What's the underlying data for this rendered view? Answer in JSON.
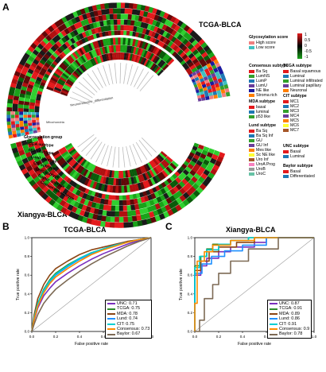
{
  "panelA": {
    "letter": "A",
    "title_tcga": "TCGA-BLCA",
    "title_xiangya": "Xiangya-BLCA",
    "pathways_upper": [
      "Neuroendocrine_differentiation",
      "Mitochondria"
    ],
    "track_labels": [
      "Glycosylation group",
      "TCGA subtype",
      "MDA subtype",
      "Lund subtype",
      "CIT subtype",
      "UNC subtype",
      "Baylor subtype",
      "Consensus subtype"
    ],
    "glyco_legend": {
      "title": "Glycosylation score",
      "items": [
        {
          "label": "High score",
          "color": "#f08080"
        },
        {
          "label": "Low score",
          "color": "#40c0c0"
        }
      ]
    },
    "colorbar": {
      "ticks": [
        "1",
        "0.5",
        "0",
        "-0.5",
        "-1"
      ],
      "colors": [
        "#e31a1c",
        "#000000",
        "#1aa31a"
      ]
    },
    "consensus": {
      "title": "Consensus subtype",
      "items": [
        {
          "label": "Ba Sq",
          "color": "#e31a1c"
        },
        {
          "label": "LumNS",
          "color": "#33a02c"
        },
        {
          "label": "LumP",
          "color": "#1f78b4"
        },
        {
          "label": "LumU",
          "color": "#6a3d9a"
        },
        {
          "label": "NE like",
          "color": "#1a1aa0"
        },
        {
          "label": "Stroma rich",
          "color": "#ff7f00"
        }
      ]
    },
    "tcga": {
      "title": "TCGA subtype",
      "items": [
        {
          "label": "Basal squamous",
          "color": "#e31a1c"
        },
        {
          "label": "Luminal",
          "color": "#1f78b4"
        },
        {
          "label": "Luminal infiltrated",
          "color": "#33a02c"
        },
        {
          "label": "Luminal papillary",
          "color": "#6a3d9a"
        },
        {
          "label": "Neuronal",
          "color": "#ff7f00"
        }
      ]
    },
    "mda": {
      "title": "MDA subtype",
      "items": [
        {
          "label": "basal",
          "color": "#e31a1c"
        },
        {
          "label": "luminal",
          "color": "#1f78b4"
        },
        {
          "label": "p53 like",
          "color": "#33a02c"
        }
      ]
    },
    "cit": {
      "title": "CIT subtype",
      "items": [
        {
          "label": "MC1",
          "color": "#e31a1c"
        },
        {
          "label": "MC2",
          "color": "#1f78b4"
        },
        {
          "label": "MC3",
          "color": "#33a02c"
        },
        {
          "label": "MC4",
          "color": "#6a3d9a"
        },
        {
          "label": "MC5",
          "color": "#ff7f00"
        },
        {
          "label": "MC6",
          "color": "#ffff33"
        },
        {
          "label": "MC7",
          "color": "#a65628"
        }
      ]
    },
    "lund": {
      "title": "Lund subtype",
      "items": [
        {
          "label": "Ba Sq",
          "color": "#e31a1c"
        },
        {
          "label": "Ba Sq Inf",
          "color": "#1f78b4"
        },
        {
          "label": "GU",
          "color": "#33a02c"
        },
        {
          "label": "GU Inf",
          "color": "#6a3d9a"
        },
        {
          "label": "Mes like",
          "color": "#ff7f00"
        },
        {
          "label": "Sc NE like",
          "color": "#ffff33"
        },
        {
          "label": "Uro Inf",
          "color": "#a65628"
        },
        {
          "label": "UroA Prog",
          "color": "#f781bf"
        },
        {
          "label": "UroB",
          "color": "#999999"
        },
        {
          "label": "UroC",
          "color": "#66c2a5"
        }
      ]
    },
    "unc": {
      "title": "UNC subtype",
      "items": [
        {
          "label": "Basal",
          "color": "#e31a1c"
        },
        {
          "label": "Luminal",
          "color": "#1f78b4"
        }
      ]
    },
    "baylor": {
      "title": "Baylor subtype",
      "items": [
        {
          "label": "Basal",
          "color": "#e31a1c"
        },
        {
          "label": "Differentiated",
          "color": "#1f78b4"
        }
      ]
    }
  },
  "panelB": {
    "letter": "B",
    "chart_data": {
      "type": "line",
      "title": "TCGA-BLCA",
      "xlabel": "False positive rate",
      "ylabel": "True positive rate",
      "xlim": [
        0,
        1
      ],
      "ylim": [
        0,
        1
      ],
      "xticks": [
        "0.0",
        "0.2",
        "0.4",
        "0.6",
        "0.8",
        "1.0"
      ],
      "yticks": [
        "0.0",
        "0.2",
        "0.4",
        "0.6",
        "0.8",
        "1.0"
      ],
      "series": [
        {
          "name": "UNC: 0.71",
          "color": "#7b2fbe",
          "x": [
            0,
            0.02,
            0.05,
            0.1,
            0.15,
            0.2,
            0.3,
            0.4,
            0.5,
            0.6,
            0.7,
            0.8,
            0.9,
            1
          ],
          "y": [
            0,
            0.12,
            0.25,
            0.38,
            0.46,
            0.53,
            0.62,
            0.7,
            0.77,
            0.83,
            0.88,
            0.93,
            0.97,
            1
          ]
        },
        {
          "name": "TCGA: 0.75",
          "color": "#2e8b2e",
          "x": [
            0,
            0.02,
            0.05,
            0.1,
            0.15,
            0.2,
            0.3,
            0.4,
            0.5,
            0.6,
            0.7,
            0.8,
            0.9,
            1
          ],
          "y": [
            0,
            0.15,
            0.3,
            0.45,
            0.55,
            0.62,
            0.71,
            0.78,
            0.84,
            0.88,
            0.92,
            0.95,
            0.98,
            1
          ]
        },
        {
          "name": "MDA: 0.78",
          "color": "#8b4513",
          "x": [
            0,
            0.02,
            0.05,
            0.1,
            0.15,
            0.2,
            0.3,
            0.4,
            0.5,
            0.6,
            0.7,
            0.8,
            0.9,
            1
          ],
          "y": [
            0,
            0.18,
            0.35,
            0.5,
            0.6,
            0.67,
            0.75,
            0.82,
            0.87,
            0.9,
            0.93,
            0.96,
            0.98,
            1
          ]
        },
        {
          "name": "Lund: 0.74",
          "color": "#1e90ff",
          "x": [
            0,
            0.02,
            0.05,
            0.1,
            0.15,
            0.2,
            0.3,
            0.4,
            0.5,
            0.6,
            0.7,
            0.8,
            0.9,
            1
          ],
          "y": [
            0,
            0.14,
            0.28,
            0.43,
            0.53,
            0.6,
            0.69,
            0.77,
            0.83,
            0.88,
            0.92,
            0.95,
            0.98,
            1
          ]
        },
        {
          "name": "CIT: 0.75",
          "color": "#00ced1",
          "x": [
            0,
            0.02,
            0.05,
            0.1,
            0.15,
            0.2,
            0.3,
            0.4,
            0.5,
            0.6,
            0.7,
            0.8,
            0.9,
            1
          ],
          "y": [
            0,
            0.15,
            0.3,
            0.44,
            0.54,
            0.61,
            0.7,
            0.78,
            0.84,
            0.88,
            0.92,
            0.95,
            0.98,
            1
          ]
        },
        {
          "name": "Consensus: 0.73",
          "color": "#ff8c00",
          "x": [
            0,
            0.02,
            0.05,
            0.1,
            0.15,
            0.2,
            0.3,
            0.4,
            0.5,
            0.6,
            0.7,
            0.8,
            0.9,
            1
          ],
          "y": [
            0,
            0.13,
            0.27,
            0.41,
            0.51,
            0.58,
            0.67,
            0.75,
            0.82,
            0.87,
            0.91,
            0.95,
            0.98,
            1
          ]
        },
        {
          "name": "Baylor: 0.67",
          "color": "#7d6a55",
          "x": [
            0,
            0.02,
            0.05,
            0.1,
            0.15,
            0.2,
            0.3,
            0.4,
            0.5,
            0.6,
            0.7,
            0.8,
            0.9,
            1
          ],
          "y": [
            0,
            0.08,
            0.18,
            0.3,
            0.38,
            0.45,
            0.55,
            0.64,
            0.72,
            0.79,
            0.85,
            0.91,
            0.96,
            1
          ]
        }
      ]
    }
  },
  "panelC": {
    "letter": "C",
    "chart_data": {
      "type": "line",
      "title": "Xiangya-BLCA",
      "xlabel": "False positive rate",
      "ylabel": "True positive rate",
      "xlim": [
        0,
        1
      ],
      "ylim": [
        0,
        1
      ],
      "xticks": [
        "0.0",
        "0.2",
        "0.4",
        "0.6",
        "0.8",
        "1.0"
      ],
      "yticks": [
        "0.0",
        "0.2",
        "0.4",
        "0.6",
        "0.8",
        "1.0"
      ],
      "series": [
        {
          "name": "UNC: 0.87",
          "color": "#7b2fbe",
          "x": [
            0,
            0,
            0.05,
            0.05,
            0.1,
            0.1,
            0.2,
            0.2,
            0.3,
            0.3,
            0.5,
            0.5,
            0.6,
            0.6,
            1
          ],
          "y": [
            0,
            0.6,
            0.6,
            0.7,
            0.7,
            0.78,
            0.78,
            0.85,
            0.85,
            0.9,
            0.9,
            0.95,
            0.95,
            1,
            1
          ]
        },
        {
          "name": "TCGA: 0.91",
          "color": "#2e8b2e",
          "x": [
            0,
            0,
            0.05,
            0.05,
            0.1,
            0.1,
            0.15,
            0.15,
            0.3,
            0.3,
            0.45,
            0.45,
            1
          ],
          "y": [
            0,
            0.7,
            0.7,
            0.8,
            0.8,
            0.88,
            0.88,
            0.93,
            0.93,
            0.97,
            0.97,
            1,
            1
          ]
        },
        {
          "name": "MDA: 0.89",
          "color": "#8b4513",
          "x": [
            0,
            0,
            0.05,
            0.05,
            0.12,
            0.12,
            0.2,
            0.2,
            0.35,
            0.35,
            0.5,
            0.5,
            1
          ],
          "y": [
            0,
            0.65,
            0.65,
            0.75,
            0.75,
            0.85,
            0.85,
            0.9,
            0.9,
            0.95,
            0.95,
            1,
            1
          ]
        },
        {
          "name": "Lund: 0.86",
          "color": "#1e90ff",
          "x": [
            0,
            0,
            0.06,
            0.06,
            0.14,
            0.14,
            0.25,
            0.25,
            0.4,
            0.4,
            0.6,
            0.6,
            1
          ],
          "y": [
            0,
            0.62,
            0.62,
            0.72,
            0.72,
            0.8,
            0.8,
            0.86,
            0.86,
            0.92,
            0.92,
            1,
            1
          ]
        },
        {
          "name": "CIT: 0.91",
          "color": "#00ced1",
          "x": [
            0,
            0,
            0.04,
            0.04,
            0.1,
            0.1,
            0.2,
            0.2,
            0.3,
            0.3,
            0.45,
            0.45,
            1
          ],
          "y": [
            0,
            0.68,
            0.68,
            0.8,
            0.8,
            0.87,
            0.87,
            0.93,
            0.93,
            0.97,
            0.97,
            1,
            1
          ]
        },
        {
          "name": "Consensus: 0.9",
          "color": "#ff8c00",
          "x": [
            0,
            0,
            0.02,
            0.02,
            0.08,
            0.08,
            0.15,
            0.15,
            0.3,
            0.3,
            0.5,
            0.5,
            1
          ],
          "y": [
            0,
            0.3,
            0.3,
            0.75,
            0.75,
            0.85,
            0.85,
            0.92,
            0.92,
            0.97,
            0.97,
            1,
            1
          ]
        },
        {
          "name": "Baylor: 0.78",
          "color": "#7d6a55",
          "x": [
            0,
            0.04,
            0.04,
            0.08,
            0.08,
            0.15,
            0.15,
            0.2,
            0.2,
            0.3,
            0.3,
            0.45,
            0.45,
            0.7,
            0.7,
            1
          ],
          "y": [
            0,
            0,
            0.12,
            0.12,
            0.35,
            0.35,
            0.5,
            0.5,
            0.62,
            0.62,
            0.75,
            0.75,
            0.88,
            0.88,
            1,
            1
          ]
        }
      ]
    }
  }
}
